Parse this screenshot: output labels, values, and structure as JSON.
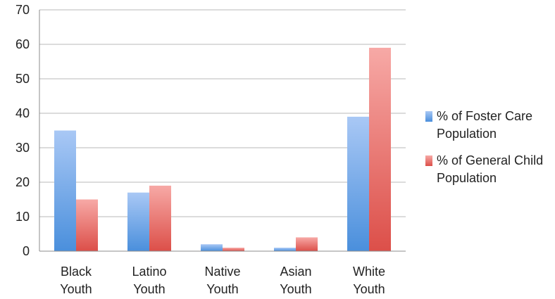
{
  "chart_data": {
    "type": "bar",
    "categories": [
      [
        "Black",
        "Youth"
      ],
      [
        "Latino",
        "Youth"
      ],
      [
        "Native",
        "Youth"
      ],
      [
        "Asian",
        "Youth"
      ],
      [
        "White",
        "Youth"
      ]
    ],
    "series": [
      {
        "name": [
          "% of Foster Care",
          "Population"
        ],
        "values": [
          35,
          17,
          2,
          1,
          39
        ],
        "color_top": "#a9c8f5",
        "color_bottom": "#4a8fdc"
      },
      {
        "name": [
          "% of General Child",
          "Population"
        ],
        "values": [
          15,
          19,
          1,
          4,
          59
        ],
        "color_top": "#f7a9a6",
        "color_bottom": "#dc4f49"
      }
    ],
    "ylim": [
      0,
      70
    ],
    "yticks": [
      0,
      10,
      20,
      30,
      40,
      50,
      60,
      70
    ],
    "grid": true,
    "legend_position": "right"
  },
  "colors": {
    "grid": "#b8b8b8",
    "axis": "#8c8c8c",
    "text": "#222222"
  }
}
